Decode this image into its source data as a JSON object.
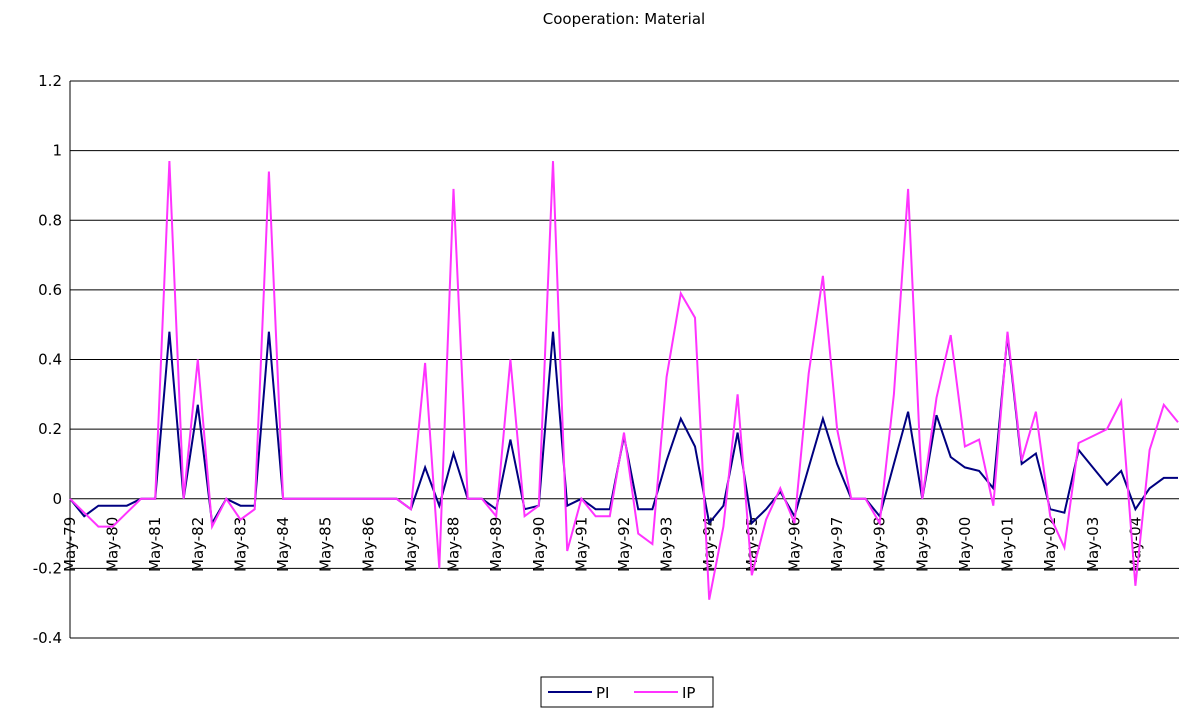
{
  "chart_data": {
    "type": "line",
    "title": "Cooperation: Material",
    "categories": [
      "May-79",
      null,
      null,
      "May-80",
      null,
      null,
      "May-81",
      null,
      null,
      "May-82",
      null,
      null,
      "May-83",
      null,
      null,
      "May-84",
      null,
      null,
      "May-85",
      null,
      null,
      "May-86",
      null,
      null,
      "May-87",
      null,
      null,
      "May-88",
      null,
      null,
      "May-89",
      null,
      null,
      "May-90",
      null,
      null,
      "May-91",
      null,
      null,
      "May-92",
      null,
      null,
      "May-93",
      null,
      null,
      "May-94",
      null,
      null,
      "May-95",
      null,
      null,
      "May-96",
      null,
      null,
      "May-97",
      null,
      null,
      "May-98",
      null,
      null,
      "May-99",
      null,
      null,
      "May-00",
      null,
      null,
      "May-01",
      null,
      null,
      "May-02",
      null,
      null,
      "May-03",
      null,
      null,
      "May-04",
      null,
      null,
      null
    ],
    "series": [
      {
        "name": "PI",
        "color": "#000080",
        "values": [
          0,
          -0.05,
          -0.02,
          -0.02,
          -0.02,
          0,
          0,
          0.48,
          0,
          0.27,
          -0.07,
          0,
          -0.02,
          -0.02,
          0.48,
          0,
          0,
          0,
          0,
          0,
          0,
          0,
          0,
          0,
          -0.03,
          0.09,
          -0.02,
          0.13,
          0,
          0,
          -0.03,
          0.17,
          -0.03,
          -0.02,
          0.48,
          -0.02,
          0,
          -0.03,
          -0.03,
          0.18,
          -0.03,
          -0.03,
          0.11,
          0.23,
          0.15,
          -0.07,
          -0.02,
          0.19,
          -0.07,
          -0.03,
          0.02,
          -0.05,
          0.09,
          0.23,
          0.1,
          0,
          0,
          -0.05,
          0.1,
          0.25,
          0,
          0.24,
          0.12,
          0.09,
          0.08,
          0.03,
          0.47,
          0.1,
          0.13,
          -0.03,
          -0.04,
          0.14,
          0.09,
          0.04,
          0.08,
          -0.03,
          0.03,
          0.06,
          0.06
        ]
      },
      {
        "name": "IP",
        "color": "#ff33ff",
        "values": [
          0,
          -0.04,
          -0.08,
          -0.08,
          -0.04,
          0,
          0,
          0.97,
          0,
          0.4,
          -0.08,
          0,
          -0.06,
          -0.03,
          0.94,
          0,
          0,
          0,
          0,
          0,
          0,
          0,
          0,
          0,
          -0.03,
          0.39,
          -0.2,
          0.89,
          0,
          0,
          -0.05,
          0.4,
          -0.05,
          -0.02,
          0.97,
          -0.15,
          0,
          -0.05,
          -0.05,
          0.19,
          -0.1,
          -0.13,
          0.35,
          0.59,
          0.52,
          -0.29,
          -0.08,
          0.3,
          -0.22,
          -0.06,
          0.03,
          -0.07,
          0.36,
          0.64,
          0.2,
          0,
          0,
          -0.07,
          0.3,
          0.89,
          0,
          0.29,
          0.47,
          0.15,
          0.17,
          -0.02,
          0.48,
          0.11,
          0.25,
          -0.05,
          -0.14,
          0.16,
          0.18,
          0.2,
          0.28,
          -0.25,
          0.14,
          0.27,
          0.22
        ]
      }
    ],
    "ylim": [
      -0.4,
      1.2
    ],
    "yticks": [
      -0.4,
      -0.2,
      0,
      0.2,
      0.4,
      0.6,
      0.8,
      1,
      1.2
    ],
    "grid": true,
    "legend": "bottom"
  }
}
